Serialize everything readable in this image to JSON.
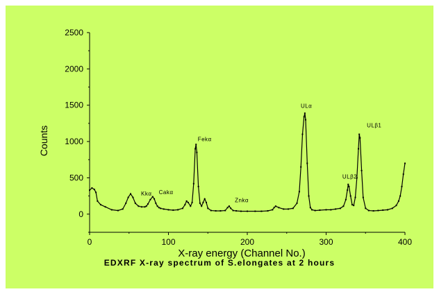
{
  "chart_data": {
    "type": "line",
    "title": "EDXRF X-ray spectrum of S.elongates at 2 hours",
    "xlabel": "X-ray energy (Channel No.)",
    "ylabel": "Counts",
    "xlim": [
      0,
      400
    ],
    "ylim": [
      -250,
      2500
    ],
    "xticks": [
      "0",
      "100",
      "200",
      "300",
      "400"
    ],
    "yticks": [
      "0",
      "500",
      "1000",
      "1500",
      "2000",
      "2500"
    ],
    "grid": false,
    "legend": "none",
    "line_color": "#000000",
    "background_color": "#ccff66",
    "series": [
      {
        "x": [
          0,
          3,
          6,
          8,
          10,
          14,
          20,
          28,
          36,
          42,
          46,
          49,
          52,
          55,
          58,
          62,
          66,
          70,
          72,
          74,
          77,
          80,
          82,
          84,
          86,
          88,
          90,
          94,
          100,
          106,
          112,
          118,
          121,
          123,
          125,
          128,
          130,
          132,
          134,
          135,
          136,
          138,
          140,
          142,
          144,
          146,
          148,
          150,
          154,
          160,
          166,
          172,
          175,
          177,
          179,
          182,
          186,
          192,
          200,
          210,
          218,
          226,
          232,
          234,
          236,
          240,
          246,
          252,
          258,
          263,
          266,
          268,
          270,
          272,
          273,
          274,
          276,
          278,
          280,
          282,
          286,
          292,
          300,
          306,
          312,
          318,
          322,
          325,
          327,
          328,
          329,
          331,
          333,
          335,
          337,
          339,
          341,
          342,
          343,
          345,
          347,
          350,
          354,
          360,
          366,
          372,
          378,
          384,
          389,
          392,
          394,
          396,
          398,
          400
        ],
        "y": [
          330,
          360,
          340,
          300,
          180,
          130,
          100,
          60,
          50,
          70,
          150,
          230,
          280,
          230,
          150,
          110,
          100,
          100,
          110,
          140,
          200,
          240,
          210,
          150,
          110,
          90,
          80,
          70,
          60,
          55,
          60,
          80,
          130,
          180,
          160,
          110,
          160,
          420,
          900,
          960,
          850,
          380,
          150,
          110,
          160,
          210,
          160,
          80,
          50,
          45,
          45,
          50,
          90,
          110,
          80,
          50,
          45,
          40,
          40,
          40,
          40,
          45,
          60,
          90,
          110,
          90,
          70,
          70,
          80,
          150,
          310,
          650,
          1100,
          1340,
          1390,
          1300,
          700,
          250,
          90,
          60,
          50,
          55,
          60,
          60,
          70,
          80,
          110,
          200,
          330,
          410,
          380,
          250,
          130,
          120,
          230,
          500,
          900,
          1100,
          1050,
          600,
          230,
          80,
          50,
          45,
          50,
          55,
          60,
          80,
          120,
          180,
          250,
          380,
          550,
          700
        ]
      }
    ],
    "annotations": [
      {
        "text": "Kkα",
        "x": 72,
        "y": 255
      },
      {
        "text": "Cakα",
        "x": 97,
        "y": 275
      },
      {
        "text": "Fekα",
        "x": 146,
        "y": 1005
      },
      {
        "text": "Znkα",
        "x": 193,
        "y": 165
      },
      {
        "text": "ULα",
        "x": 275,
        "y": 1465
      },
      {
        "text": "ULβ2",
        "x": 330,
        "y": 490
      },
      {
        "text": "ULβ1",
        "x": 361,
        "y": 1195
      }
    ]
  }
}
